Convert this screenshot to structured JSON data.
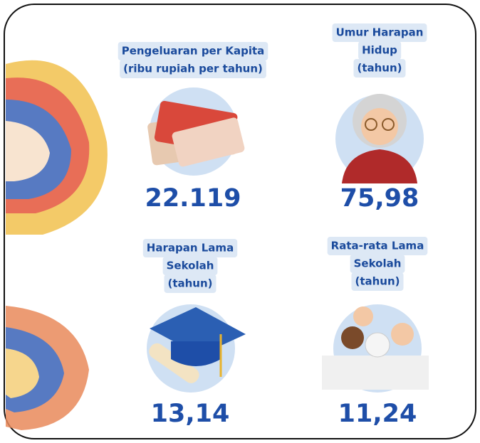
{
  "indicators": [
    {
      "label": [
        "Pengeluaran per Kapita",
        "(ribu rupiah per tahun)"
      ],
      "value": "22.119"
    },
    {
      "label": [
        "Umur Harapan",
        "Hidup",
        "(tahun)"
      ],
      "value": "75,98"
    },
    {
      "label": [
        "Harapan Lama",
        "Sekolah",
        "(tahun)"
      ],
      "value": "13,14"
    },
    {
      "label": [
        "Rata-rata Lama",
        "Sekolah",
        "(tahun)"
      ],
      "value": "11,24"
    }
  ]
}
